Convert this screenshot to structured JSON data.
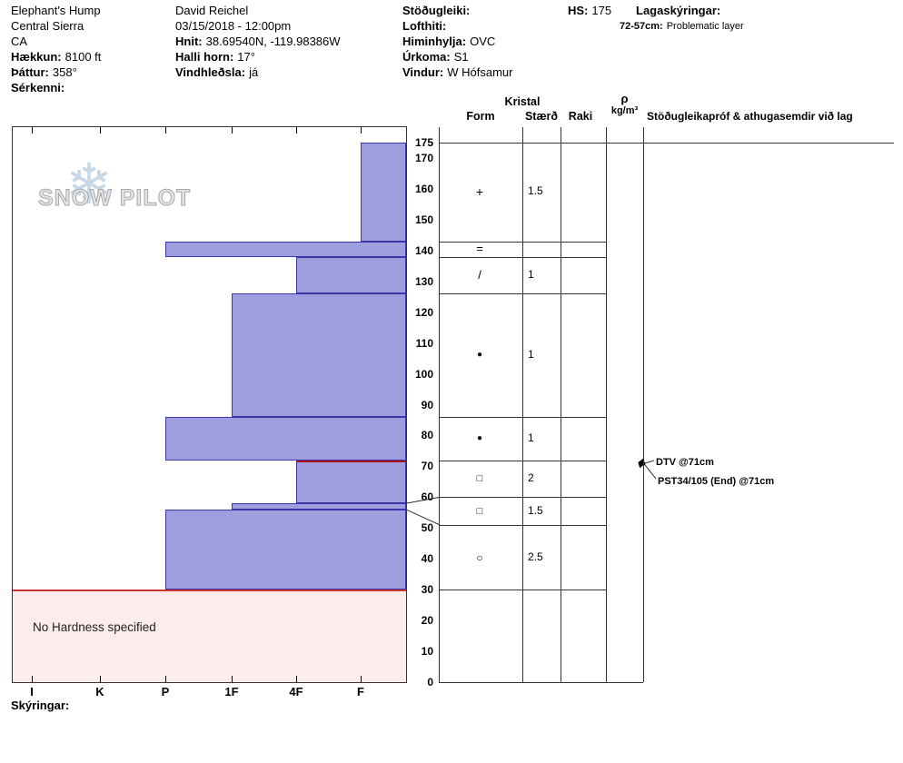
{
  "header": {
    "site": {
      "name": "Elephant's Hump",
      "region": "Central Sierra",
      "state": "CA",
      "elevation_label": "Hækkun:",
      "elevation": "8100 ft",
      "aspect_label": "Þáttur:",
      "aspect": "358°",
      "features_label": "Sérkenni:"
    },
    "observer": {
      "name": "David Reichel",
      "datetime": "03/15/2018 - 12:00pm",
      "coordinates_label": "Hnit:",
      "coordinates": "38.69540N, -119.98386W",
      "slope_angle_label": "Halli horn:",
      "slope_angle": "17°",
      "wind_loading_label": "Vindhleðsla:",
      "wind_loading": "já"
    },
    "conditions": {
      "stability_label": "Stöðugleiki:",
      "air_temp_label": "Lofthiti:",
      "sky_label": "Himinhylja:",
      "sky": "OVC",
      "precip_label": "Úrkoma:",
      "precip": "S1",
      "wind_label": "Vindur:",
      "wind": "W Hófsamur"
    },
    "hs_label": "HS:",
    "hs": "175",
    "layer_notes_label": "Lagaskýringar:",
    "layer_note_range": "72-57cm:",
    "layer_note_text": "Problematic layer"
  },
  "columns": {
    "kristal": "Kristal",
    "form": "Form",
    "size": "Stærð",
    "moisture": "Raki",
    "rho": "ρ",
    "rho_unit": "kg/m³",
    "tests_header": "Stöðugleikapróf & athugasemdir við lag"
  },
  "footer": {
    "legend_label": "Skýringar:"
  },
  "watermark": {
    "line": "SNOW PILOT"
  },
  "chart_data": {
    "type": "snow-profile",
    "depth_unit": "cm",
    "hs_cm": 175,
    "depth_axis_max": 180,
    "depth_tick_labels": [
      175,
      170,
      160,
      150,
      140,
      130,
      120,
      110,
      100,
      90,
      80,
      70,
      60,
      50,
      40,
      30,
      20,
      10,
      0
    ],
    "hardness_scale": [
      "I",
      "K",
      "P",
      "1F",
      "4F",
      "F"
    ],
    "layers": [
      {
        "top_cm": 175,
        "bottom_cm": 143,
        "hardness": "F"
      },
      {
        "top_cm": 143,
        "bottom_cm": 138,
        "hardness": "P"
      },
      {
        "top_cm": 138,
        "bottom_cm": 126,
        "hardness": "4F"
      },
      {
        "top_cm": 126,
        "bottom_cm": 86,
        "hardness": "1F"
      },
      {
        "top_cm": 86,
        "bottom_cm": 72,
        "hardness": "P"
      },
      {
        "top_cm": 72,
        "bottom_cm": 58,
        "hardness": "4F",
        "problem_top": true
      },
      {
        "top_cm": 58,
        "bottom_cm": 56,
        "hardness": "1F"
      },
      {
        "top_cm": 56,
        "bottom_cm": 30,
        "hardness": "P"
      }
    ],
    "no_hardness_region": {
      "top_cm": 30,
      "bottom_cm": 0,
      "label": "No Hardness specified"
    },
    "problem_layer": {
      "top_cm": 72,
      "bottom_cm": 57,
      "note": "Problematic layer"
    },
    "grain_rows": [
      {
        "top_cm": 175,
        "bottom_cm": 143,
        "form": "+",
        "size": "1.5"
      },
      {
        "top_cm": 143,
        "bottom_cm": 138,
        "form": "=",
        "size": ""
      },
      {
        "top_cm": 138,
        "bottom_cm": 126,
        "form": "/",
        "size": "1"
      },
      {
        "top_cm": 126,
        "bottom_cm": 86,
        "form": "●",
        "size": "1"
      },
      {
        "top_cm": 86,
        "bottom_cm": 72,
        "form": "●",
        "size": "1"
      },
      {
        "top_cm": 72,
        "bottom_cm": 60,
        "form": "□",
        "size": "2"
      },
      {
        "top_cm": 60,
        "bottom_cm": 51,
        "form": "□",
        "size": "1.5"
      },
      {
        "top_cm": 51,
        "bottom_cm": 30,
        "form": "○",
        "size": "2.5"
      },
      {
        "top_cm": 30,
        "bottom_cm": 0,
        "form": "",
        "size": ""
      }
    ],
    "connectors": [
      {
        "chart_cm": 58,
        "row_cm": 60
      },
      {
        "chart_cm": 56,
        "row_cm": 51
      }
    ],
    "test_annotations": [
      {
        "text": "DTV @71cm",
        "depth_cm": 71
      },
      {
        "text": "PST34/105 (End) @71cm",
        "depth_cm": 71
      }
    ],
    "colors": {
      "bar_fill": "#9e9ede",
      "bar_border": "#3737a8",
      "problem_line": "#aa1111",
      "no_hardness_fill": "#fdecec",
      "no_hardness_border": "#cc3333"
    }
  }
}
